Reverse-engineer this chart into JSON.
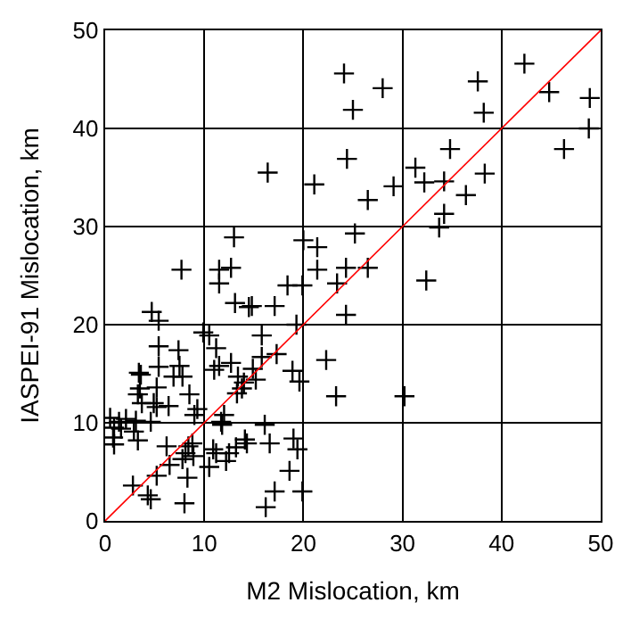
{
  "chart_data": {
    "type": "scatter",
    "xlabel": "M2 Mislocation, km",
    "ylabel": "IASPEI-91 Mislocation, km",
    "xlim": [
      0,
      50
    ],
    "ylim": [
      0,
      50
    ],
    "xticks": [
      0,
      10,
      20,
      30,
      40,
      50
    ],
    "yticks": [
      0,
      10,
      20,
      30,
      40,
      50
    ],
    "grid": true,
    "marker": "cross",
    "series": [
      {
        "color": "#000000",
        "x": [
          24.1,
          28.0,
          25.0,
          37.6,
          38.2,
          42.3,
          44.8,
          48.9,
          48.8,
          46.3,
          24.4,
          34.8,
          31.3,
          32.2,
          34.2,
          38.3,
          29.1,
          26.5,
          36.4,
          34.2,
          33.7,
          25.2,
          24.3,
          26.5,
          32.4,
          16.4,
          21.1,
          13.0,
          20.0,
          21.4,
          7.7,
          11.5,
          12.7,
          21.4,
          11.5,
          13.1,
          14.5,
          4.7,
          5.4,
          9.9,
          10.5,
          5.4,
          7.4,
          11.2,
          11.5,
          12.7,
          11.0,
          3.4,
          3.6,
          5.4,
          7.5,
          6.9,
          7.8,
          13.4,
          14.0,
          14.9,
          3.5,
          5.2,
          8.5,
          13.3,
          13.8,
          3.3,
          3.7,
          4.9,
          6.4,
          5.2,
          9.3,
          9.0,
          12.0,
          11.7,
          0.5,
          1.4,
          2.1,
          3.1,
          4.6,
          0.9,
          1.6,
          2.9,
          0.8,
          3.3,
          0.9,
          11.8,
          14.1,
          13.2,
          6.2,
          8.4,
          8.8,
          8.1,
          7.8,
          8.9,
          10.9,
          11.2,
          12.5,
          14.3,
          12.2,
          10.5,
          6.5,
          5.2,
          8.3,
          2.8,
          4.3,
          4.6,
          8.0,
          18.4,
          19.9,
          23.4,
          14.8,
          17.1,
          24.3,
          15.8,
          19.3,
          15.8,
          17.3,
          15.2,
          18.9,
          19.6,
          22.3,
          23.3,
          16.1,
          16.6,
          19.0,
          19.4,
          18.6,
          17.1,
          19.9,
          16.2,
          30.2
        ],
        "values": [
          45.6,
          44.1,
          41.9,
          44.8,
          41.6,
          46.6,
          43.7,
          43.1,
          40.0,
          37.9,
          36.9,
          37.9,
          36.0,
          34.5,
          34.6,
          35.4,
          34.1,
          32.7,
          33.2,
          31.3,
          29.9,
          29.3,
          25.8,
          25.8,
          24.5,
          35.5,
          34.3,
          28.9,
          28.6,
          27.9,
          25.6,
          25.6,
          25.8,
          25.6,
          24.2,
          22.2,
          21.8,
          21.3,
          20.4,
          19.2,
          18.9,
          17.8,
          17.4,
          17.6,
          15.8,
          16.1,
          15.4,
          15.1,
          14.9,
          15.7,
          15.8,
          14.7,
          14.7,
          14.7,
          14.1,
          15.5,
          13.5,
          13.6,
          12.9,
          13.0,
          13.5,
          12.9,
          12.0,
          12.0,
          11.7,
          11.6,
          11.4,
          10.8,
          10.8,
          10.1,
          10.5,
          10.1,
          10.4,
          10.2,
          10.1,
          9.5,
          9.4,
          9.1,
          8.5,
          8.2,
          7.8,
          9.8,
          8.3,
          7.5,
          7.6,
          7.6,
          7.9,
          6.9,
          6.3,
          6.6,
          7.3,
          6.9,
          6.9,
          7.9,
          6.1,
          5.5,
          5.7,
          4.6,
          4.4,
          3.6,
          2.6,
          2.2,
          1.8,
          24.0,
          24.0,
          24.2,
          21.9,
          21.9,
          21.0,
          18.9,
          20.0,
          16.7,
          17.0,
          14.4,
          15.3,
          14.2,
          16.4,
          12.7,
          9.8,
          7.9,
          8.4,
          7.3,
          5.1,
          3.0,
          3.0,
          1.4,
          12.7
        ]
      },
      {
        "type": "line",
        "color": "#ff0000",
        "x": [
          0,
          50
        ],
        "values": [
          0,
          50
        ],
        "marker": "none"
      }
    ]
  }
}
